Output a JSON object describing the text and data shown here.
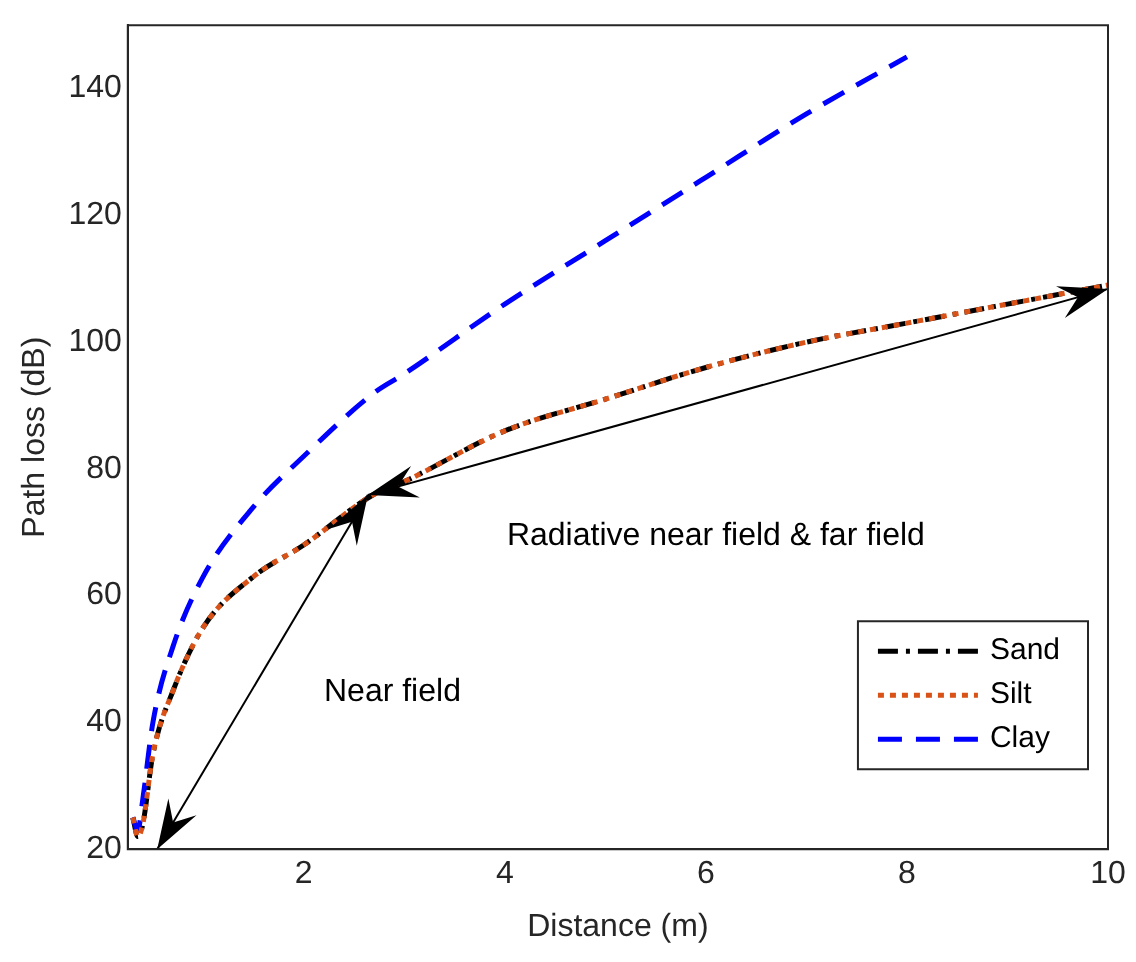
{
  "chart_data": {
    "type": "line",
    "xlabel": "Distance (m)",
    "ylabel": "Path loss (dB)",
    "xlim": [
      0.25,
      10
    ],
    "xticks": [
      2,
      4,
      6,
      8,
      10
    ],
    "ylim": [
      20,
      150
    ],
    "yticks": [
      20,
      40,
      60,
      80,
      100,
      120,
      140
    ],
    "x": [
      0.3,
      0.35,
      0.4,
      0.5,
      0.7,
      1,
      1.5,
      2,
      2.7,
      3,
      4,
      5,
      6,
      7,
      8,
      9,
      10
    ],
    "series": [
      {
        "name": "Sand",
        "color": "#000000",
        "line_style": "dashdot",
        "values": [
          25,
          22,
          24,
          35,
          45,
          55,
          63,
          68,
          76,
          78,
          86,
          91,
          96,
          100,
          103,
          106,
          109
        ]
      },
      {
        "name": "Silt",
        "color": "#d95319",
        "line_style": "dotted",
        "values": [
          25,
          22,
          24,
          35,
          45,
          55,
          63,
          68,
          76,
          78,
          86,
          91,
          96,
          100,
          103,
          106,
          109
        ]
      },
      {
        "name": "Clay",
        "color": "#0000ff",
        "line_style": "dashed",
        "values": [
          25,
          23,
          28,
          40,
          52,
          63,
          74,
          82,
          92,
          95,
          106,
          116,
          126,
          136,
          145,
          null,
          null
        ]
      }
    ],
    "legend": "bottom right",
    "grid": false,
    "annotations": [
      "Near field",
      "Radiative near field & far field"
    ]
  }
}
